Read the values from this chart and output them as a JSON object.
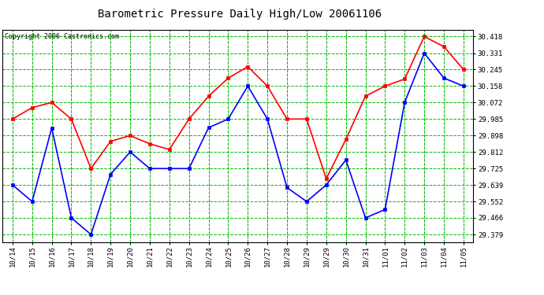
{
  "title": "Barometric Pressure Daily High/Low 20061106",
  "copyright": "Copyright 2006 Castronics.com",
  "background_color": "#ffffff",
  "plot_bg_color": "#ffffff",
  "grid_color": "#00bb00",
  "x_labels": [
    "10/14",
    "10/15",
    "10/16",
    "10/17",
    "10/18",
    "10/19",
    "10/20",
    "10/21",
    "10/22",
    "10/23",
    "10/24",
    "10/25",
    "10/26",
    "10/27",
    "10/28",
    "10/29",
    "10/29",
    "10/30",
    "10/31",
    "11/01",
    "11/02",
    "11/03",
    "11/04",
    "11/05"
  ],
  "high_values": [
    29.985,
    30.045,
    30.072,
    29.985,
    29.725,
    29.868,
    29.898,
    29.855,
    29.825,
    29.985,
    30.105,
    30.2,
    30.26,
    30.158,
    29.985,
    29.985,
    29.672,
    29.878,
    30.105,
    30.158,
    30.195,
    30.418,
    30.365,
    30.245
  ],
  "low_values": [
    29.639,
    29.552,
    29.938,
    29.466,
    29.379,
    29.695,
    29.812,
    29.725,
    29.725,
    29.725,
    29.94,
    29.985,
    30.158,
    29.985,
    29.625,
    29.552,
    29.639,
    29.77,
    29.466,
    29.51,
    30.072,
    30.331,
    30.2,
    30.158
  ],
  "y_ticks": [
    29.379,
    29.466,
    29.552,
    29.639,
    29.725,
    29.812,
    29.898,
    29.985,
    30.072,
    30.158,
    30.245,
    30.331,
    30.418
  ],
  "high_color": "#ff0000",
  "low_color": "#0000ff",
  "marker_size": 3,
  "line_width": 1.2,
  "ylim_min": 29.34,
  "ylim_max": 30.455
}
